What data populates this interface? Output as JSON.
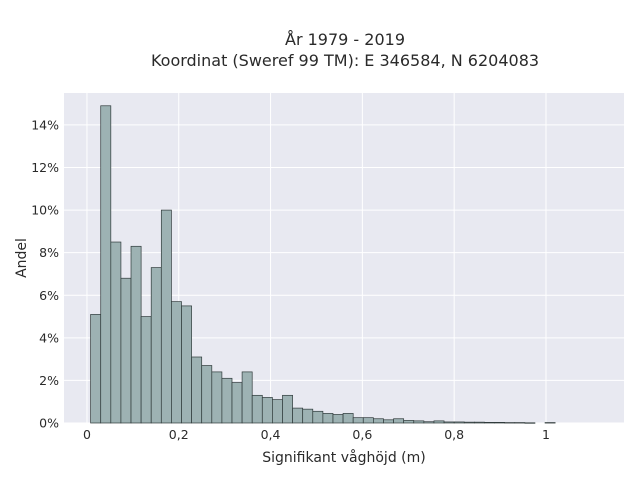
{
  "chart_data": {
    "type": "bar",
    "title": "År 1979 - 2019",
    "subtitle": "Koordinat (Sweref 99 TM): E 346584, N 6204083",
    "xlabel": "Signifikant våghöjd (m)",
    "ylabel": "Andel",
    "xlim": [
      -0.05,
      1.17
    ],
    "ylim": [
      0,
      15.5
    ],
    "x_ticks": [
      {
        "value": 0,
        "label": "0"
      },
      {
        "value": 0.2,
        "label": "0,2"
      },
      {
        "value": 0.4,
        "label": "0,4"
      },
      {
        "value": 0.6,
        "label": "0,6"
      },
      {
        "value": 0.8,
        "label": "0,8"
      },
      {
        "value": 1,
        "label": "1"
      }
    ],
    "y_ticks": [
      {
        "value": 0,
        "label": "0%"
      },
      {
        "value": 2,
        "label": "2%"
      },
      {
        "value": 4,
        "label": "4%"
      },
      {
        "value": 6,
        "label": "6%"
      },
      {
        "value": 8,
        "label": "8%"
      },
      {
        "value": 10,
        "label": "10%"
      },
      {
        "value": 12,
        "label": "12%"
      },
      {
        "value": 14,
        "label": "14%"
      }
    ],
    "bin_width": 0.022,
    "bin_start": 0.008,
    "values": [
      5.1,
      14.9,
      8.5,
      6.8,
      8.3,
      5.0,
      7.3,
      10.0,
      5.7,
      5.5,
      3.1,
      2.7,
      2.4,
      2.1,
      1.9,
      2.4,
      1.3,
      1.2,
      1.1,
      1.3,
      0.7,
      0.65,
      0.55,
      0.45,
      0.4,
      0.45,
      0.25,
      0.25,
      0.2,
      0.15,
      0.2,
      0.12,
      0.1,
      0.06,
      0.1,
      0.05,
      0.05,
      0.04,
      0.04,
      0.03,
      0.03,
      0.02,
      0.02,
      0.01,
      0,
      0.02
    ],
    "colors": {
      "bar_fill": "#9db2b3",
      "bar_stroke": "#2f3a3a",
      "plot_bg": "#e8e9f1",
      "grid": "#ffffff"
    },
    "grid": true
  }
}
